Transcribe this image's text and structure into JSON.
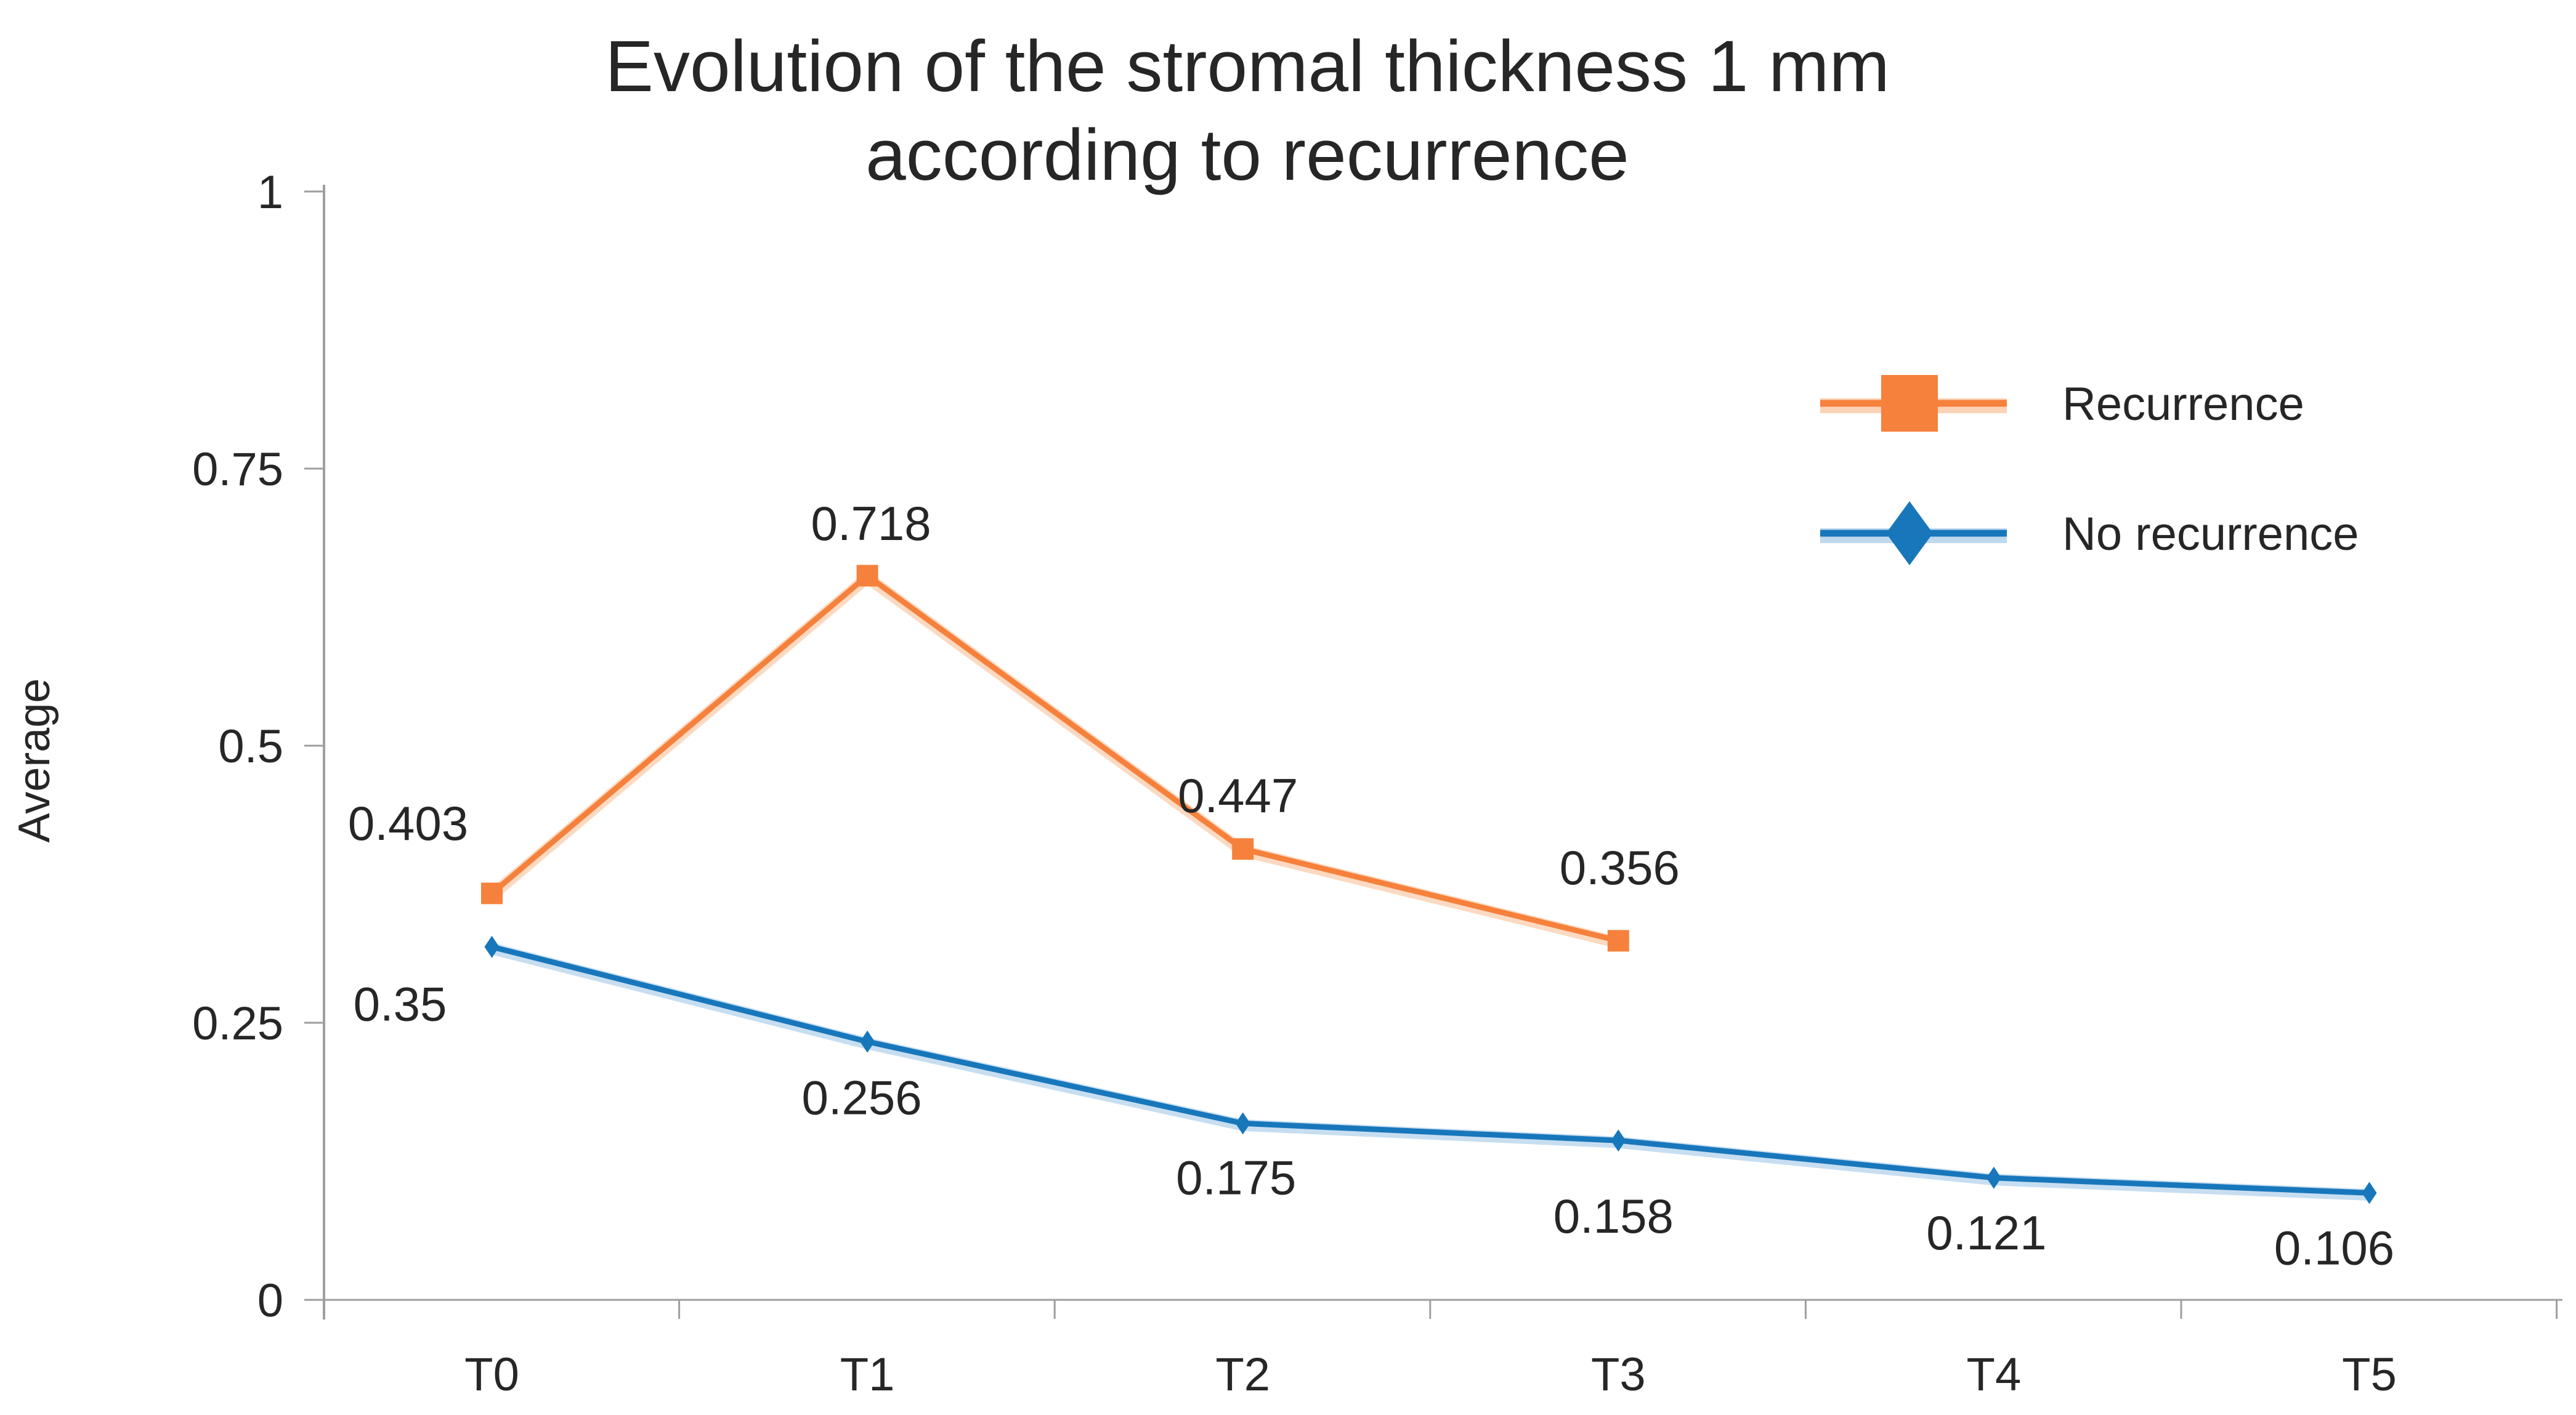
{
  "title": {
    "line1": "Evolution of the stromal thickness 1 mm",
    "line2": "according to recurrence"
  },
  "y_axis": {
    "label": "Average",
    "ticks": [
      {
        "value": 1,
        "text": "1"
      },
      {
        "value": 0.75,
        "text": "0.75"
      },
      {
        "value": 0.5,
        "text": "0.5"
      },
      {
        "value": 0.25,
        "text": "0.25"
      },
      {
        "value": 0,
        "text": "0"
      }
    ]
  },
  "x_axis": {
    "categories": [
      "T0",
      "T1",
      "T2",
      "T3",
      "T4",
      "T5"
    ]
  },
  "legend": {
    "items": [
      "Recurrence",
      "No recurrence"
    ]
  },
  "chart_data": {
    "type": "line",
    "title": "Evolution of the stromal thickness 1 mm according to recurrence",
    "ylabel": "Average",
    "xlabel": "",
    "ylim": [
      0,
      1
    ],
    "yticks": [
      0,
      0.25,
      0.5,
      0.75,
      1
    ],
    "grid": false,
    "legend_position": "right-top",
    "categories": [
      "T0",
      "T1",
      "T2",
      "T3",
      "T4",
      "T5"
    ],
    "series": [
      {
        "name": "Recurrence",
        "color": "#F5813C",
        "halo_color": "#FBC49F",
        "marker": "square",
        "values": [
          0.403,
          0.718,
          0.447,
          0.356
        ],
        "point_labels": [
          "0.403",
          "0.718",
          "0.447",
          "0.356"
        ]
      },
      {
        "name": "No recurrence",
        "color": "#1877BB",
        "halo_color": "#A9CCE9",
        "marker": "diamond",
        "values": [
          0.35,
          0.256,
          0.175,
          0.158,
          0.121,
          0.106
        ],
        "point_labels": [
          "0.35",
          "0.256",
          "0.175",
          "0.158",
          "0.121",
          "0.106"
        ]
      }
    ]
  }
}
